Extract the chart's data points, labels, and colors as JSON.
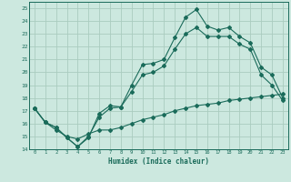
{
  "xlabel": "Humidex (Indice chaleur)",
  "ylabel": "",
  "bg_color": "#cce8df",
  "grid_color": "#aaccbf",
  "line_color": "#1a6b5a",
  "xlim": [
    -0.5,
    23.5
  ],
  "ylim": [
    14,
    25.5
  ],
  "xticks": [
    0,
    1,
    2,
    3,
    4,
    5,
    6,
    7,
    8,
    9,
    10,
    11,
    12,
    13,
    14,
    15,
    16,
    17,
    18,
    19,
    20,
    21,
    22,
    23
  ],
  "yticks": [
    14,
    15,
    16,
    17,
    18,
    19,
    20,
    21,
    22,
    23,
    24,
    25
  ],
  "line1_x": [
    0,
    1,
    2,
    3,
    4,
    5,
    6,
    7,
    8,
    9,
    10,
    11,
    12,
    13,
    14,
    15,
    16,
    17,
    18,
    19,
    20,
    21,
    22,
    23
  ],
  "line1_y": [
    17.2,
    16.1,
    15.7,
    14.9,
    14.2,
    14.9,
    16.8,
    17.4,
    17.3,
    19.0,
    20.6,
    20.7,
    21.0,
    22.7,
    24.3,
    24.9,
    23.6,
    23.3,
    23.5,
    22.8,
    22.3,
    20.4,
    19.8,
    18.0
  ],
  "line2_x": [
    0,
    1,
    2,
    3,
    4,
    5,
    6,
    7,
    8,
    9,
    10,
    11,
    12,
    13,
    14,
    15,
    16,
    17,
    18,
    19,
    20,
    21,
    22,
    23
  ],
  "line2_y": [
    17.2,
    16.1,
    15.7,
    14.9,
    14.2,
    15.0,
    16.5,
    17.2,
    17.3,
    18.5,
    19.8,
    20.0,
    20.5,
    21.8,
    23.0,
    23.5,
    22.8,
    22.8,
    22.8,
    22.2,
    21.8,
    19.8,
    19.0,
    17.8
  ],
  "line3_x": [
    0,
    1,
    2,
    3,
    4,
    5,
    6,
    7,
    8,
    9,
    10,
    11,
    12,
    13,
    14,
    15,
    16,
    17,
    18,
    19,
    20,
    21,
    22,
    23
  ],
  "line3_y": [
    17.2,
    16.1,
    15.5,
    15.0,
    14.8,
    15.2,
    15.5,
    15.5,
    15.7,
    16.0,
    16.3,
    16.5,
    16.7,
    17.0,
    17.2,
    17.4,
    17.5,
    17.6,
    17.8,
    17.9,
    18.0,
    18.1,
    18.2,
    18.3
  ]
}
